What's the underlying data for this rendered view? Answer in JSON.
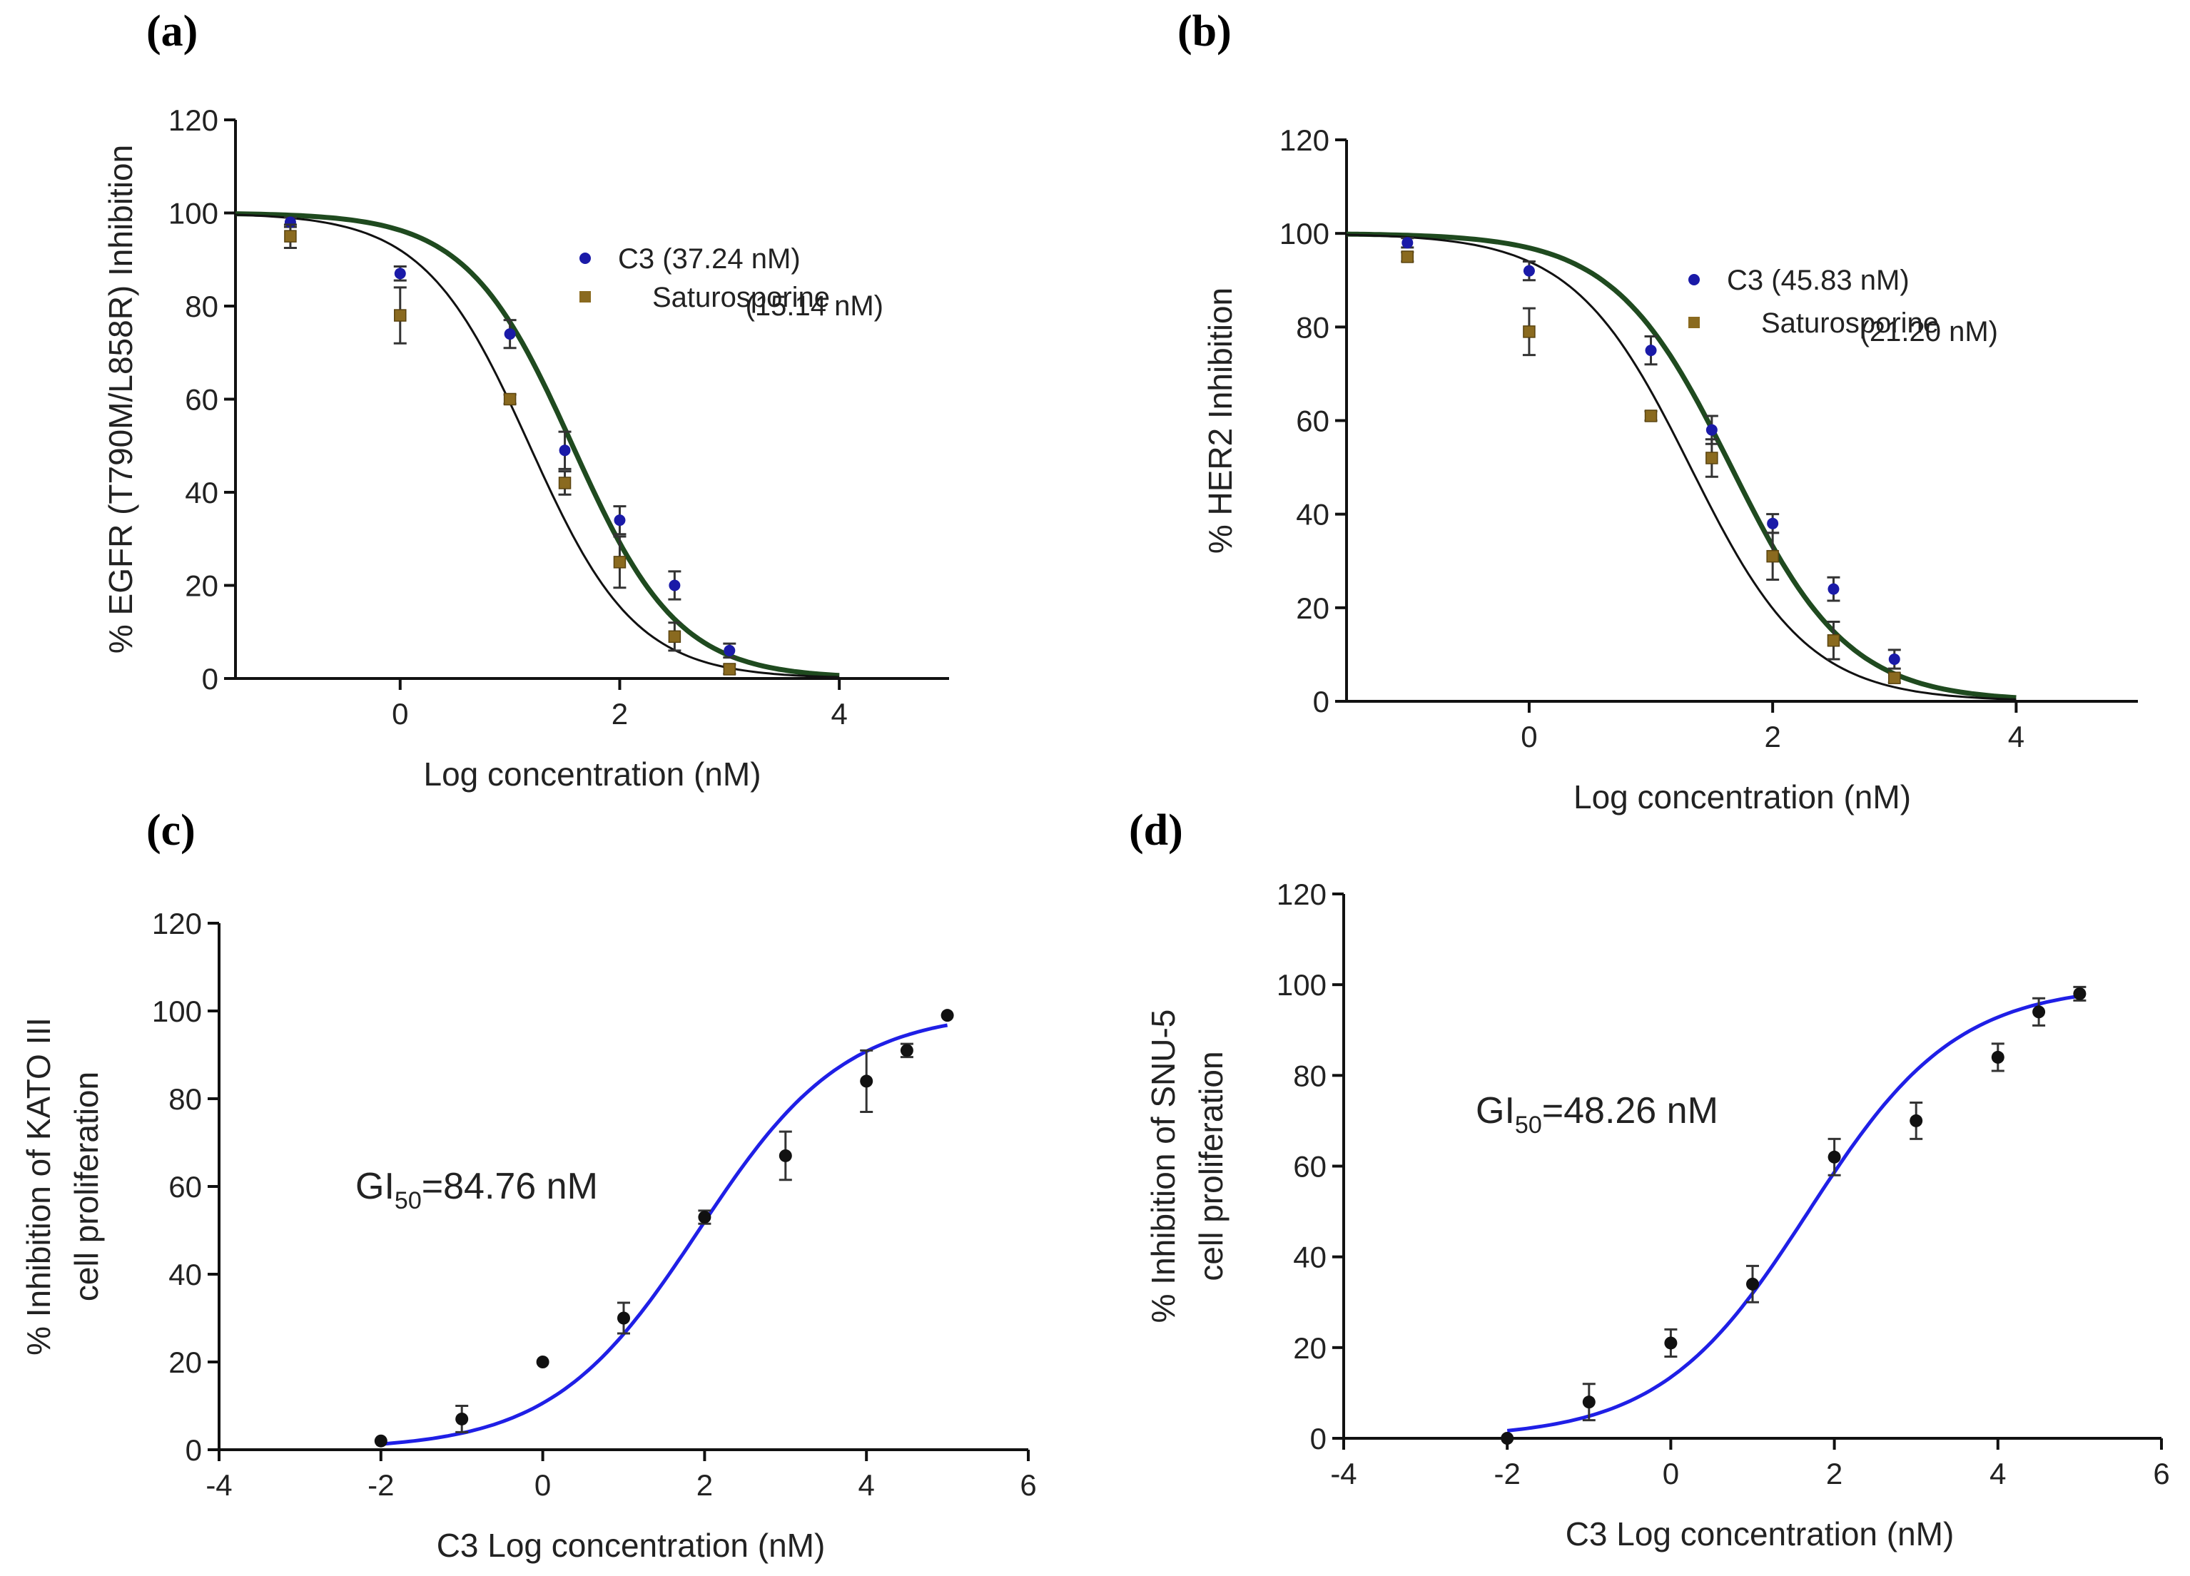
{
  "chart_data": [
    {
      "panel": "(a)",
      "type": "scatter",
      "xlabel": "Log concentration (nM)",
      "ylabel": "% EGFR (T790M/L858R)  Inhibition",
      "xlim": [
        -1.5,
        5.0
      ],
      "ylim": [
        0,
        120
      ],
      "xticks": [
        0,
        2,
        4
      ],
      "xtick_labels": [
        "0",
        "2",
        "4"
      ],
      "yticks": [
        0,
        20,
        40,
        60,
        80,
        100,
        120
      ],
      "ytick_labels": [
        "0",
        "20",
        "40",
        "60",
        "80",
        "100",
        "120"
      ],
      "legend_position": "top-right",
      "series": [
        {
          "name": "C3",
          "legend_label": "C3 (37.24 nM)",
          "ic50_nM": 37.24,
          "marker": "circle",
          "color": "#1a1aa8",
          "curve_color": "#1f4a1f",
          "curve_range": [
            -1.5,
            4.0
          ],
          "x": [
            -1,
            0,
            1,
            1.5,
            2,
            2.5,
            3
          ],
          "y": [
            98,
            87,
            74,
            49,
            34,
            20,
            6
          ],
          "err": [
            1,
            1.5,
            3,
            4,
            3,
            3,
            1.5
          ]
        },
        {
          "name": "Saturosporine",
          "legend_label": "Saturosporine",
          "legend_value": "(15.14 nM)",
          "ic50_nM": 15.14,
          "marker": "square",
          "color": "#8a6a1f",
          "curve_color": "#111111",
          "curve_range": [
            -1.5,
            4.0
          ],
          "x": [
            -1,
            0,
            1,
            1.5,
            2,
            2.5,
            3
          ],
          "y": [
            95,
            78,
            60,
            42,
            25,
            9,
            2
          ],
          "err": [
            2.5,
            6,
            1,
            2.5,
            5.5,
            3,
            1
          ]
        }
      ]
    },
    {
      "panel": "(b)",
      "type": "scatter",
      "xlabel": "Log concentration (nM)",
      "ylabel": "% HER2  Inhibition",
      "xlim": [
        -1.5,
        5.0
      ],
      "ylim": [
        0,
        120
      ],
      "xticks": [
        0,
        2,
        4
      ],
      "xtick_labels": [
        "0",
        "2",
        "4"
      ],
      "yticks": [
        0,
        20,
        40,
        60,
        80,
        100,
        120
      ],
      "ytick_labels": [
        "0",
        "20",
        "40",
        "60",
        "80",
        "100",
        "120"
      ],
      "legend_position": "top-right",
      "series": [
        {
          "name": "C3",
          "legend_label": "C3 (45.83 nM)",
          "ic50_nM": 45.83,
          "marker": "circle",
          "color": "#1a1aa8",
          "curve_color": "#1f4a1f",
          "curve_range": [
            -1.5,
            4.0
          ],
          "x": [
            -1,
            0,
            1,
            1.5,
            2,
            2.5,
            3
          ],
          "y": [
            98,
            92,
            75,
            58,
            38,
            24,
            9
          ],
          "err": [
            1,
            2,
            3,
            3,
            2,
            2.5,
            2
          ]
        },
        {
          "name": "Saturosporine",
          "legend_label": "Saturosporine",
          "legend_value": "(21.20 nM)",
          "ic50_nM": 21.2,
          "marker": "square",
          "color": "#8a6a1f",
          "curve_color": "#111111",
          "curve_range": [
            -1.5,
            4.0
          ],
          "x": [
            -1,
            0,
            1,
            1.5,
            2,
            2.5,
            3
          ],
          "y": [
            95,
            79,
            61,
            52,
            31,
            13,
            5
          ],
          "err": [
            1,
            5,
            1,
            4,
            5,
            4,
            1
          ]
        }
      ]
    },
    {
      "panel": "(c)",
      "type": "scatter",
      "xlabel": "C3 Log concentration (nM)",
      "ylabel": "% Inhibition of KATO III",
      "ylabel2": "cell proliferation",
      "xlim": [
        -4,
        6
      ],
      "ylim": [
        0,
        120
      ],
      "xticks": [
        -4,
        -2,
        0,
        2,
        4,
        6
      ],
      "xtick_labels": [
        "-4",
        "-2",
        "0",
        "2",
        "4",
        "6"
      ],
      "yticks": [
        0,
        20,
        40,
        60,
        80,
        100,
        120
      ],
      "ytick_labels": [
        "0",
        "20",
        "40",
        "60",
        "80",
        "100",
        "120"
      ],
      "annotation_main": "GI",
      "annotation_sub": "50",
      "annotation_tail": "=84.76 nM",
      "gi50_nM": 84.76,
      "series": [
        {
          "name": "C3",
          "marker": "circle",
          "color": "#111111",
          "curve_color": "#1f1fe6",
          "curve_range": [
            -2,
            5
          ],
          "x": [
            -2,
            -1,
            0,
            1,
            2,
            3,
            4,
            4.5,
            5
          ],
          "y": [
            2,
            7,
            20,
            30,
            53,
            67,
            84,
            91,
            99
          ],
          "err": [
            0,
            3,
            0,
            3.5,
            1.5,
            5.5,
            7,
            1.5,
            0
          ]
        }
      ]
    },
    {
      "panel": "(d)",
      "type": "scatter",
      "xlabel": "C3 Log concentration (nM)",
      "ylabel": "% Inhibition of SNU-5",
      "ylabel2": "cell proliferation",
      "xlim": [
        -4,
        6
      ],
      "ylim": [
        0,
        120
      ],
      "xticks": [
        -4,
        -2,
        0,
        2,
        4,
        6
      ],
      "xtick_labels": [
        "-4",
        "-2",
        "0",
        "2",
        "4",
        "6"
      ],
      "yticks": [
        0,
        20,
        40,
        60,
        80,
        100,
        120
      ],
      "ytick_labels": [
        "0",
        "20",
        "40",
        "60",
        "80",
        "100",
        "120"
      ],
      "annotation_main": "GI",
      "annotation_sub": "50",
      "annotation_tail": "=48.26 nM",
      "gi50_nM": 48.26,
      "series": [
        {
          "name": "C3",
          "marker": "circle",
          "color": "#111111",
          "curve_color": "#1f1fe6",
          "curve_range": [
            -2,
            5
          ],
          "x": [
            -2,
            -1,
            0,
            1,
            2,
            3,
            4,
            4.5,
            5
          ],
          "y": [
            0,
            8,
            21,
            34,
            62,
            70,
            84,
            94,
            98
          ],
          "err": [
            0,
            4,
            3,
            4,
            4,
            4,
            3,
            3,
            1.5
          ]
        }
      ]
    }
  ]
}
